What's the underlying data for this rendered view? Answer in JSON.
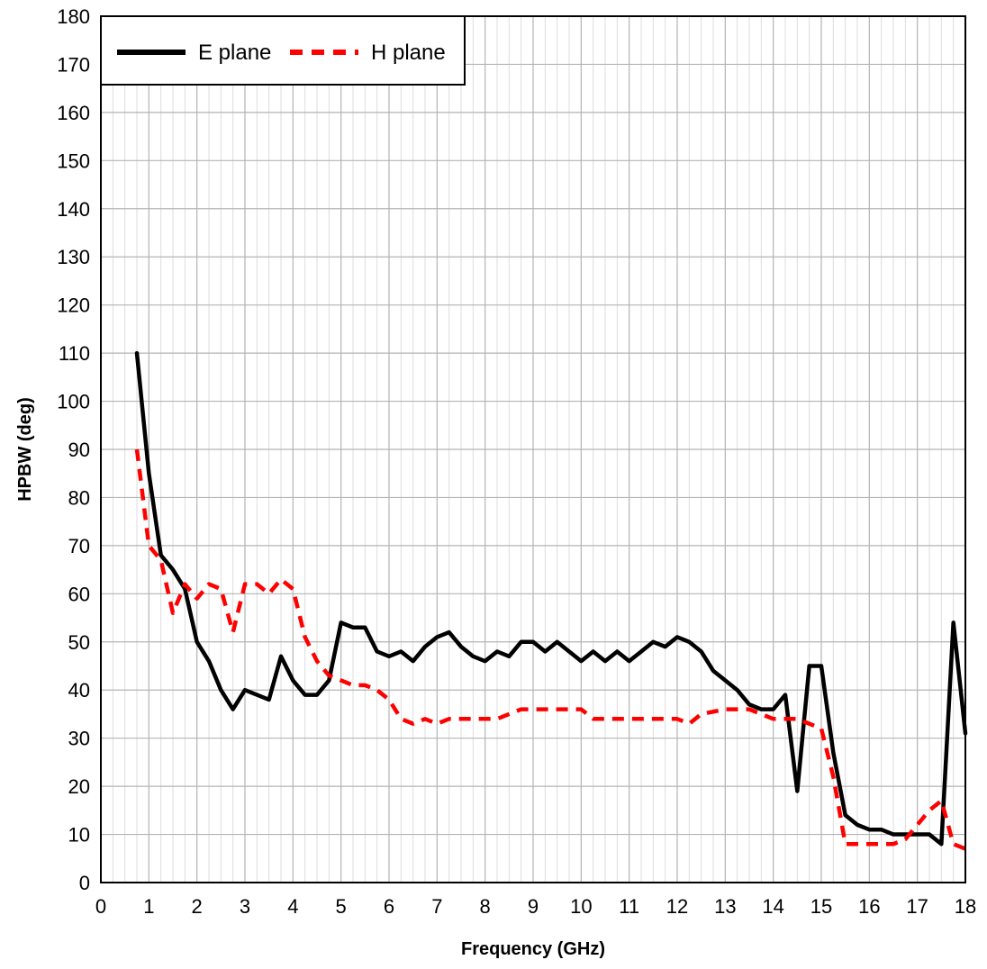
{
  "chart_data": {
    "type": "line",
    "title": "",
    "xlabel": "Frequency (GHz)",
    "ylabel": "HPBW (deg)",
    "xlim": [
      0,
      18
    ],
    "ylim": [
      0,
      180
    ],
    "x_ticks": [
      0,
      1,
      2,
      3,
      4,
      5,
      6,
      7,
      8,
      9,
      10,
      11,
      12,
      13,
      14,
      15,
      16,
      17,
      18
    ],
    "y_ticks": [
      0,
      10,
      20,
      30,
      40,
      50,
      60,
      70,
      80,
      90,
      100,
      110,
      120,
      130,
      140,
      150,
      160,
      170,
      180
    ],
    "x_minor_step": 0.25,
    "grid": true,
    "legend_position": "top-left",
    "series": [
      {
        "name": "E plane",
        "color": "#000000",
        "style": "solid",
        "points": [
          [
            0.75,
            110
          ],
          [
            1.0,
            85
          ],
          [
            1.25,
            68
          ],
          [
            1.5,
            65
          ],
          [
            1.75,
            61
          ],
          [
            2.0,
            50
          ],
          [
            2.25,
            46
          ],
          [
            2.5,
            40
          ],
          [
            2.75,
            36
          ],
          [
            3.0,
            40
          ],
          [
            3.25,
            39
          ],
          [
            3.5,
            38
          ],
          [
            3.75,
            47
          ],
          [
            4.0,
            42
          ],
          [
            4.25,
            39
          ],
          [
            4.5,
            39
          ],
          [
            4.75,
            42
          ],
          [
            5.0,
            54
          ],
          [
            5.25,
            53
          ],
          [
            5.5,
            53
          ],
          [
            5.75,
            48
          ],
          [
            6.0,
            47
          ],
          [
            6.25,
            48
          ],
          [
            6.5,
            46
          ],
          [
            6.75,
            49
          ],
          [
            7.0,
            51
          ],
          [
            7.25,
            52
          ],
          [
            7.5,
            49
          ],
          [
            7.75,
            47
          ],
          [
            8.0,
            46
          ],
          [
            8.25,
            48
          ],
          [
            8.5,
            47
          ],
          [
            8.75,
            50
          ],
          [
            9.0,
            50
          ],
          [
            9.25,
            48
          ],
          [
            9.5,
            50
          ],
          [
            9.75,
            48
          ],
          [
            10.0,
            46
          ],
          [
            10.25,
            48
          ],
          [
            10.5,
            46
          ],
          [
            10.75,
            48
          ],
          [
            11.0,
            46
          ],
          [
            11.25,
            48
          ],
          [
            11.5,
            50
          ],
          [
            11.75,
            49
          ],
          [
            12.0,
            51
          ],
          [
            12.25,
            50
          ],
          [
            12.5,
            48
          ],
          [
            12.75,
            44
          ],
          [
            13.0,
            42
          ],
          [
            13.25,
            40
          ],
          [
            13.5,
            37
          ],
          [
            13.75,
            36
          ],
          [
            14.0,
            36
          ],
          [
            14.25,
            39
          ],
          [
            14.5,
            19
          ],
          [
            14.75,
            45
          ],
          [
            15.0,
            45
          ],
          [
            15.25,
            27
          ],
          [
            15.5,
            14
          ],
          [
            15.75,
            12
          ],
          [
            16.0,
            11
          ],
          [
            16.25,
            11
          ],
          [
            16.5,
            10
          ],
          [
            16.75,
            10
          ],
          [
            17.0,
            10
          ],
          [
            17.25,
            10
          ],
          [
            17.5,
            8
          ],
          [
            17.75,
            54
          ],
          [
            18.0,
            31
          ]
        ]
      },
      {
        "name": "H plane",
        "color": "#ff0000",
        "style": "dashed",
        "points": [
          [
            0.75,
            90
          ],
          [
            1.0,
            70
          ],
          [
            1.25,
            67
          ],
          [
            1.5,
            56
          ],
          [
            1.75,
            62
          ],
          [
            2.0,
            59
          ],
          [
            2.25,
            62
          ],
          [
            2.5,
            61
          ],
          [
            2.75,
            52
          ],
          [
            3.0,
            62
          ],
          [
            3.25,
            62
          ],
          [
            3.5,
            60
          ],
          [
            3.75,
            63
          ],
          [
            4.0,
            61
          ],
          [
            4.25,
            51
          ],
          [
            4.5,
            46
          ],
          [
            4.75,
            43
          ],
          [
            5.0,
            42
          ],
          [
            5.25,
            41
          ],
          [
            5.5,
            41
          ],
          [
            5.75,
            40
          ],
          [
            6.0,
            38
          ],
          [
            6.25,
            34
          ],
          [
            6.5,
            33
          ],
          [
            6.75,
            34
          ],
          [
            7.0,
            33
          ],
          [
            7.25,
            34
          ],
          [
            7.5,
            34
          ],
          [
            7.75,
            34
          ],
          [
            8.0,
            34
          ],
          [
            8.25,
            34
          ],
          [
            8.5,
            35
          ],
          [
            8.75,
            36
          ],
          [
            9.0,
            36
          ],
          [
            9.5,
            36
          ],
          [
            10.0,
            36
          ],
          [
            10.25,
            34
          ],
          [
            10.5,
            34
          ],
          [
            11.0,
            34
          ],
          [
            11.5,
            34
          ],
          [
            12.0,
            34
          ],
          [
            12.25,
            33
          ],
          [
            12.5,
            35
          ],
          [
            13.0,
            36
          ],
          [
            13.5,
            36
          ],
          [
            13.75,
            35
          ],
          [
            14.0,
            34
          ],
          [
            14.25,
            34
          ],
          [
            14.5,
            34
          ],
          [
            14.75,
            33
          ],
          [
            15.0,
            32
          ],
          [
            15.25,
            22
          ],
          [
            15.5,
            8
          ],
          [
            16.0,
            8
          ],
          [
            16.5,
            8
          ],
          [
            16.75,
            9
          ],
          [
            17.0,
            12
          ],
          [
            17.25,
            15
          ],
          [
            17.5,
            17
          ],
          [
            17.75,
            8
          ],
          [
            18.0,
            7
          ]
        ]
      }
    ]
  }
}
